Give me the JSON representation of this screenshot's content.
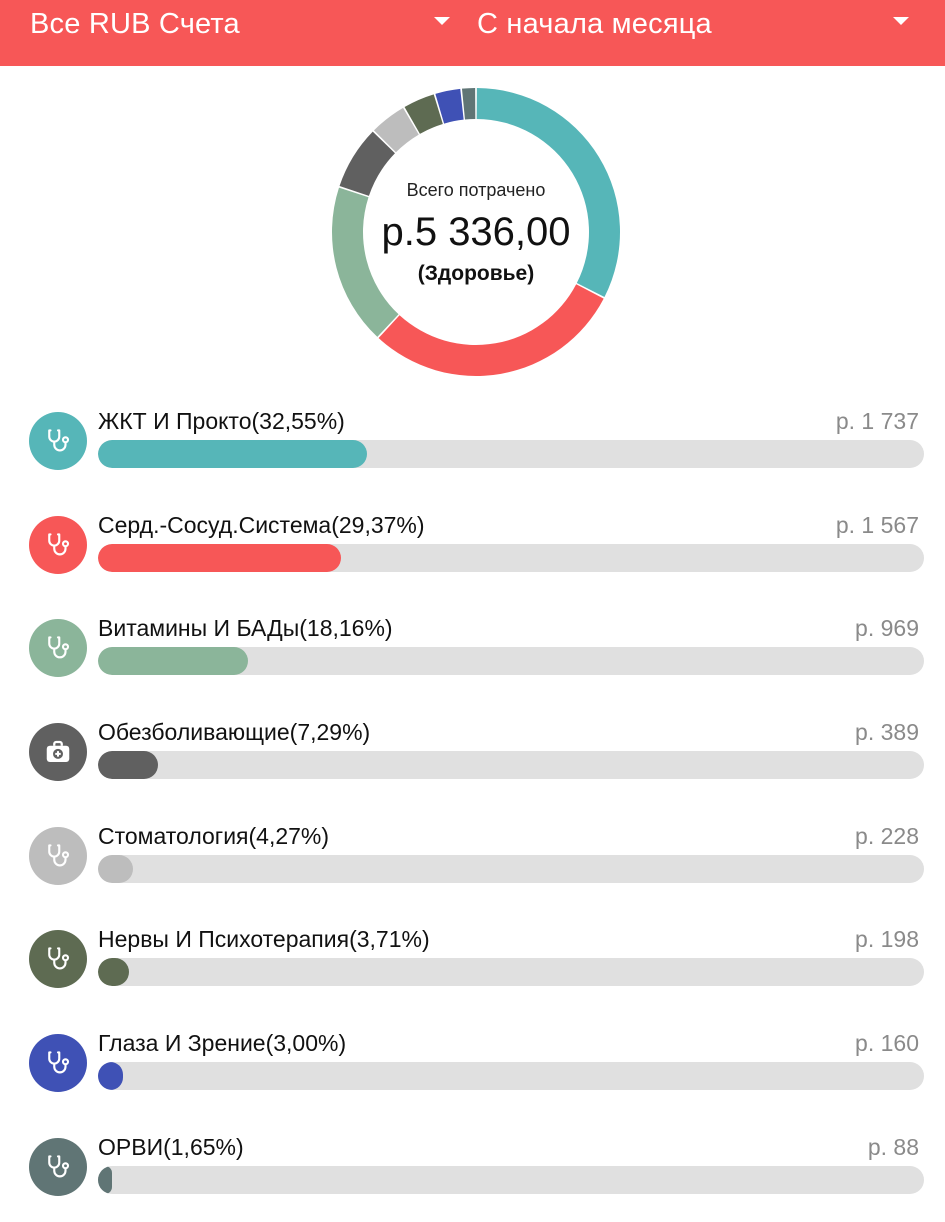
{
  "header": {
    "accounts_label": "Все RUB Счета",
    "period_label": "С начала месяца",
    "background": "#f75757"
  },
  "summary": {
    "label": "Всего потрачено",
    "amount": "р.5 336,00",
    "category": "(Здоровье)"
  },
  "chart_data": {
    "type": "pie",
    "categories": [
      "ЖКТ И Прокто",
      "Серд.-Сосуд.Система",
      "Витамины И БАДы",
      "Обезболивающие",
      "Стоматология",
      "Нервы И Психотерапия",
      "Глаза И Зрение",
      "ОРВИ"
    ],
    "values": [
      1737,
      1567,
      969,
      389,
      228,
      198,
      160,
      88
    ],
    "colors": [
      "#56b6b8",
      "#f75757",
      "#8bb59a",
      "#606060",
      "#bdbdbd",
      "#5e6b52",
      "#3f51b5",
      "#607575"
    ]
  },
  "categories": [
    {
      "title": "ЖКТ И Прокто(32,55%)",
      "amount": "р. 1 737",
      "share": 0.3255,
      "color": "#56b6b8",
      "icon": "stethoscope-icon"
    },
    {
      "title": "Серд.-Сосуд.Система(29,37%)",
      "amount": "р. 1 567",
      "share": 0.2937,
      "color": "#f75757",
      "icon": "stethoscope-icon"
    },
    {
      "title": "Витамины И БАДы(18,16%)",
      "amount": "р. 969",
      "share": 0.1816,
      "color": "#8bb59a",
      "icon": "stethoscope-icon"
    },
    {
      "title": "Обезболивающие(7,29%)",
      "amount": "р. 389",
      "share": 0.0729,
      "color": "#606060",
      "icon": "first-aid-kit-icon"
    },
    {
      "title": "Стоматология(4,27%)",
      "amount": "р. 228",
      "share": 0.0427,
      "color": "#bdbdbd",
      "icon": "stethoscope-icon"
    },
    {
      "title": "Нервы И Психотерапия(3,71%)",
      "amount": "р. 198",
      "share": 0.0371,
      "color": "#5e6b52",
      "icon": "stethoscope-icon"
    },
    {
      "title": "Глаза И Зрение(3,00%)",
      "amount": "р. 160",
      "share": 0.03,
      "color": "#3f51b5",
      "icon": "stethoscope-icon"
    },
    {
      "title": "ОРВИ(1,65%)",
      "amount": "р. 88",
      "share": 0.0165,
      "color": "#607575",
      "icon": "stethoscope-icon"
    }
  ]
}
